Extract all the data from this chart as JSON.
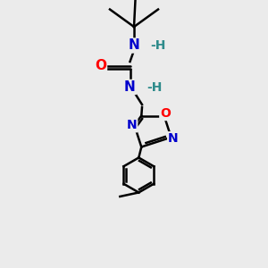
{
  "bg_color": "#ebebeb",
  "atom_colors": {
    "N": "#0000cc",
    "O": "#ff0000",
    "H": "#2e8b8b"
  },
  "bond_color": "#000000",
  "line_width": 1.8,
  "figsize": [
    3.0,
    3.0
  ],
  "dpi": 100,
  "xlim": [
    0,
    10
  ],
  "ylim": [
    0,
    10
  ]
}
